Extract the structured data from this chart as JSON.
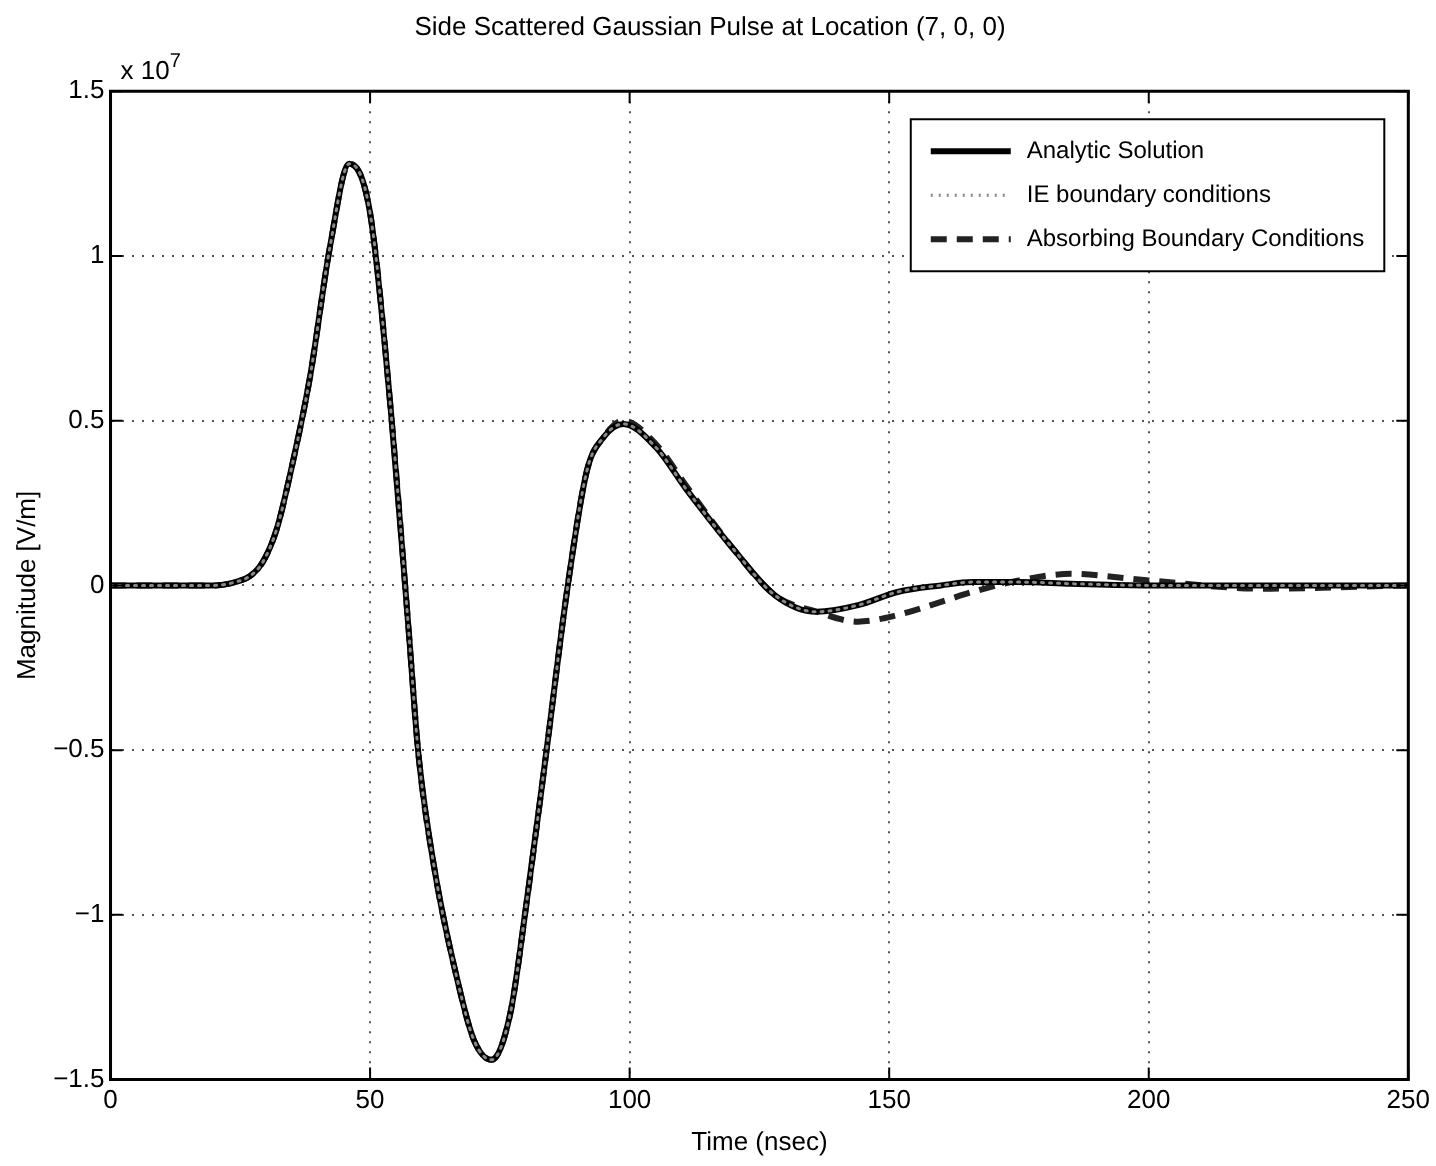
{
  "chart_data": {
    "type": "line",
    "title": "Side Scattered Gaussian Pulse at Location (7, 0, 0)",
    "xlabel": "Time (nsec)",
    "ylabel": "Magnitude [V/m]",
    "annotations": [
      "x 10$^{7}$"
    ],
    "x": [
      0,
      10,
      20,
      24,
      27,
      29.3,
      32,
      34.5,
      38.4,
      42.3,
      46,
      50,
      54,
      57.4,
      59.3,
      62.5,
      67,
      70,
      73.4,
      77,
      80,
      84,
      88,
      91.8,
      95,
      98.8,
      105,
      111,
      120,
      128,
      136,
      144,
      151.6,
      160,
      166,
      175,
      185,
      200,
      222,
      250
    ],
    "series": [
      {
        "name": "Analytic Solution",
        "color": "#000000",
        "line_style": "solid",
        "values": [
          0,
          0,
          0,
          0.01,
          0.03,
          0.07,
          0.17,
          0.33,
          0.63,
          1.03,
          1.28,
          1.13,
          0.53,
          -0.13,
          -0.51,
          -0.87,
          -1.21,
          -1.38,
          -1.44,
          -1.3,
          -0.98,
          -0.5,
          -0.01,
          0.35,
          0.45,
          0.49,
          0.42,
          0.29,
          0.11,
          -0.03,
          -0.08,
          -0.06,
          -0.02,
          0,
          0.01,
          0.01,
          0.005,
          0,
          0,
          0
        ]
      },
      {
        "name": "IE boundary conditions",
        "color": "#888888",
        "line_style": "dotted",
        "values": [
          0,
          0,
          0,
          0.01,
          0.03,
          0.07,
          0.17,
          0.33,
          0.63,
          1.03,
          1.28,
          1.13,
          0.53,
          -0.13,
          -0.51,
          -0.87,
          -1.21,
          -1.38,
          -1.44,
          -1.3,
          -0.98,
          -0.5,
          -0.01,
          0.35,
          0.45,
          0.49,
          0.42,
          0.29,
          0.11,
          -0.03,
          -0.08,
          -0.06,
          -0.02,
          0,
          0.01,
          0.01,
          0.005,
          0,
          0,
          0
        ]
      },
      {
        "name": "Absorbing Boundary Conditions",
        "color": "#222222",
        "line_style": "dashed",
        "values": [
          0,
          0,
          0,
          0.01,
          0.03,
          0.07,
          0.17,
          0.33,
          0.63,
          1.03,
          1.28,
          1.13,
          0.53,
          -0.13,
          -0.51,
          -0.87,
          -1.21,
          -1.38,
          -1.44,
          -1.3,
          -0.98,
          -0.5,
          -0.01,
          0.35,
          0.45,
          0.5,
          0.43,
          0.3,
          0.11,
          -0.03,
          -0.08,
          -0.11,
          -0.09,
          -0.05,
          -0.02,
          0.015,
          0.035,
          0.015,
          -0.01,
          0
        ]
      }
    ],
    "xlim": [
      0,
      250
    ],
    "xticks": [
      0,
      50,
      100,
      150,
      200,
      250
    ],
    "ylim": [
      -1.5,
      1.5
    ],
    "yticks": [
      {
        "value": -1.5,
        "label": "−1.5"
      },
      {
        "value": -1,
        "label": "−1"
      },
      {
        "value": -0.5,
        "label": "−0.5"
      },
      0,
      0.5,
      1,
      1.5
    ],
    "grid": true,
    "legend": "top right",
    "marker": "none"
  }
}
